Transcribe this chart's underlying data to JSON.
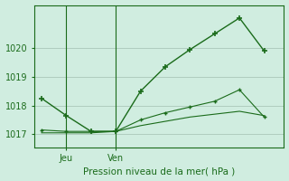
{
  "line1_x": [
    0,
    1,
    2,
    3,
    4,
    5,
    6,
    7,
    8,
    9
  ],
  "line1_y": [
    1018.25,
    1017.65,
    1017.1,
    1017.1,
    1018.5,
    1019.35,
    1019.95,
    1020.5,
    1021.05,
    1019.9
  ],
  "line2_x": [
    0,
    1,
    2,
    3,
    4,
    5,
    6,
    7,
    8,
    9
  ],
  "line2_y": [
    1017.15,
    1017.1,
    1017.1,
    1017.1,
    1017.5,
    1017.75,
    1017.95,
    1018.15,
    1018.55,
    1017.6
  ],
  "line3_x": [
    0,
    1,
    2,
    3,
    4,
    5,
    6,
    7,
    8,
    9
  ],
  "line3_y": [
    1017.05,
    1017.05,
    1017.05,
    1017.1,
    1017.3,
    1017.45,
    1017.6,
    1017.7,
    1017.8,
    1017.65
  ],
  "color": "#1a6b1a",
  "bg_color": "#d0ede0",
  "grid_color": "#b0ccbe",
  "xlabel": "Pression niveau de la mer( hPa )",
  "yticks": [
    1017,
    1018,
    1019,
    1020
  ],
  "jeu_x": 1,
  "ven_x": 3,
  "ylim": [
    1016.55,
    1021.5
  ],
  "xlim": [
    -0.3,
    9.8
  ]
}
